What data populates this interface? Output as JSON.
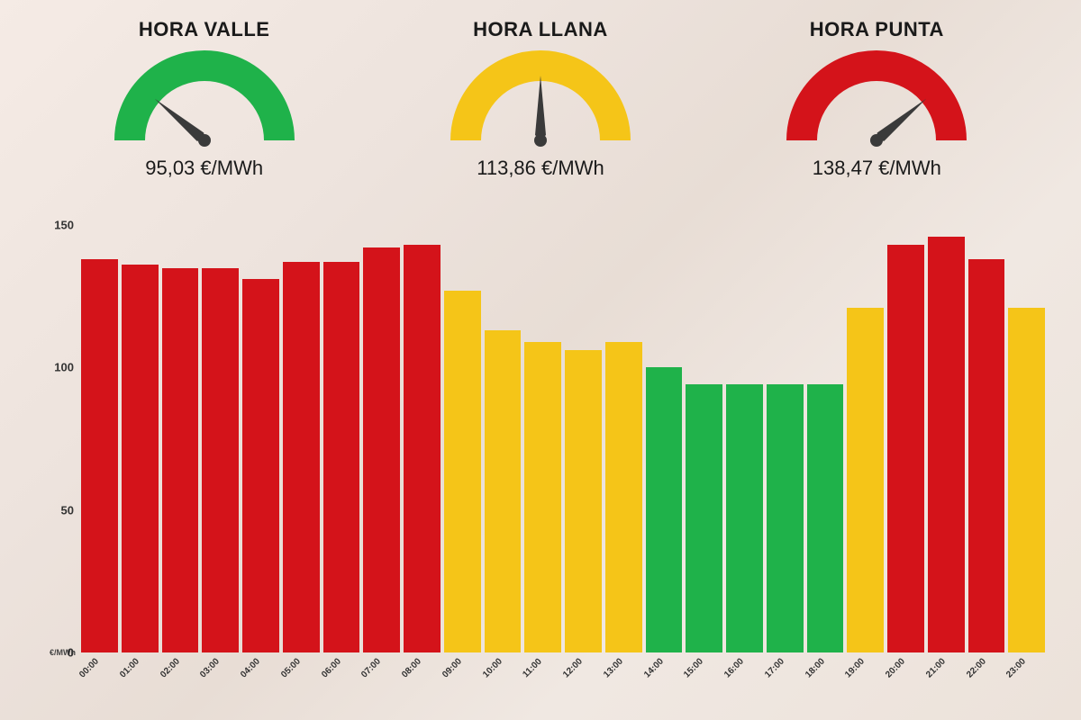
{
  "gauges": [
    {
      "title": "HORA VALLE",
      "price": "95,03 €/MWh",
      "color": "#1fb24a",
      "needle_angle": -50
    },
    {
      "title": "HORA LLANA",
      "price": "113,86 €/MWh",
      "color": "#f5c518",
      "needle_angle": 0
    },
    {
      "title": "HORA PUNTA",
      "price": "138,47 €/MWh",
      "color": "#d4131a",
      "needle_angle": 50
    }
  ],
  "chart": {
    "type": "bar",
    "y_unit_label": "€/MWh",
    "y_ticks": [
      0,
      50,
      100,
      150
    ],
    "ylim": [
      0,
      150
    ],
    "colors": {
      "red": "#d4131a",
      "yellow": "#f5c518",
      "green": "#1fb24a"
    },
    "needle_color": "#3a3a3a",
    "title_fontsize": 22,
    "price_fontsize": 22,
    "tick_fontsize": 13,
    "xlabel_fontsize": 10,
    "bars": [
      {
        "hour": "00:00",
        "value": 138,
        "tier": "red"
      },
      {
        "hour": "01:00",
        "value": 136,
        "tier": "red"
      },
      {
        "hour": "02:00",
        "value": 135,
        "tier": "red"
      },
      {
        "hour": "03:00",
        "value": 135,
        "tier": "red"
      },
      {
        "hour": "04:00",
        "value": 131,
        "tier": "red"
      },
      {
        "hour": "05:00",
        "value": 137,
        "tier": "red"
      },
      {
        "hour": "06:00",
        "value": 137,
        "tier": "red"
      },
      {
        "hour": "07:00",
        "value": 142,
        "tier": "red"
      },
      {
        "hour": "08:00",
        "value": 143,
        "tier": "red"
      },
      {
        "hour": "09:00",
        "value": 127,
        "tier": "yellow"
      },
      {
        "hour": "10:00",
        "value": 113,
        "tier": "yellow"
      },
      {
        "hour": "11:00",
        "value": 109,
        "tier": "yellow"
      },
      {
        "hour": "12:00",
        "value": 106,
        "tier": "yellow"
      },
      {
        "hour": "13:00",
        "value": 109,
        "tier": "yellow"
      },
      {
        "hour": "14:00",
        "value": 100,
        "tier": "green"
      },
      {
        "hour": "15:00",
        "value": 94,
        "tier": "green"
      },
      {
        "hour": "16:00",
        "value": 94,
        "tier": "green"
      },
      {
        "hour": "17:00",
        "value": 94,
        "tier": "green"
      },
      {
        "hour": "18:00",
        "value": 94,
        "tier": "green"
      },
      {
        "hour": "19:00",
        "value": 121,
        "tier": "yellow"
      },
      {
        "hour": "20:00",
        "value": 143,
        "tier": "red"
      },
      {
        "hour": "21:00",
        "value": 146,
        "tier": "red"
      },
      {
        "hour": "22:00",
        "value": 138,
        "tier": "red"
      },
      {
        "hour": "23:00",
        "value": 121,
        "tier": "yellow"
      }
    ]
  }
}
